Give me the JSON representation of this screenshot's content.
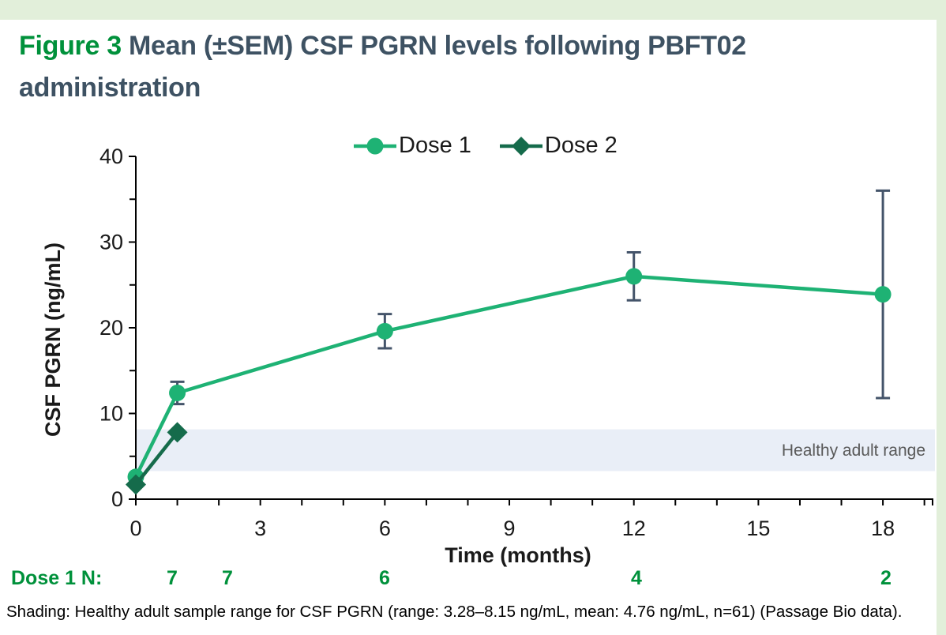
{
  "header": {
    "figure_label": "Figure 3",
    "title_rest": " Mean (±SEM) CSF PGRN levels following PBFT02 administration"
  },
  "colors": {
    "accent_light_green": "#e2efda",
    "figure_label_green": "#00913b",
    "title_slate": "#3e5263",
    "dose1_green": "#1eb274",
    "dose2_dark_green": "#156b4b",
    "error_bar_slate": "#44546a",
    "band_fill": "#e9eef7",
    "band_text_gray": "#595959",
    "axis_black": "#1a1a1a"
  },
  "chart_data": {
    "type": "line",
    "title": "",
    "xlabel": "Time (months)",
    "ylabel": "CSF PGRN (ng/mL)",
    "xlim": [
      0,
      19.2
    ],
    "ylim": [
      0,
      40
    ],
    "x_major_ticks": [
      0,
      3,
      6,
      9,
      12,
      15,
      18
    ],
    "x_minor_tick_step": 1,
    "y_major_ticks": [
      0,
      10,
      20,
      30,
      40
    ],
    "y_minor_ticks": [
      5,
      15,
      25,
      35
    ],
    "grid": false,
    "legend_position": "top-center",
    "series": [
      {
        "name": "Dose 1",
        "marker": "circle",
        "color": "#1eb274",
        "x": [
          0,
          1,
          6,
          12,
          18
        ],
        "y": [
          2.6,
          12.4,
          19.6,
          26.0,
          23.9
        ],
        "sem": [
          0,
          1.3,
          2.0,
          2.8,
          12.1
        ]
      },
      {
        "name": "Dose 2",
        "marker": "diamond",
        "color": "#156b4b",
        "x": [
          0,
          1
        ],
        "y": [
          1.7,
          7.8
        ],
        "sem": [
          0,
          0
        ]
      }
    ],
    "band": {
      "label": "Healthy adult range",
      "y_from": 3.28,
      "y_to": 8.15
    }
  },
  "n_row": {
    "label": "Dose 1 N:",
    "values": [
      "7",
      "7",
      "6",
      "4",
      "2"
    ]
  },
  "footnote": "Shading: Healthy adult sample range for CSF PGRN (range: 3.28–8.15 ng/mL, mean: 4.76 ng/mL, n=61) (Passage Bio data)."
}
